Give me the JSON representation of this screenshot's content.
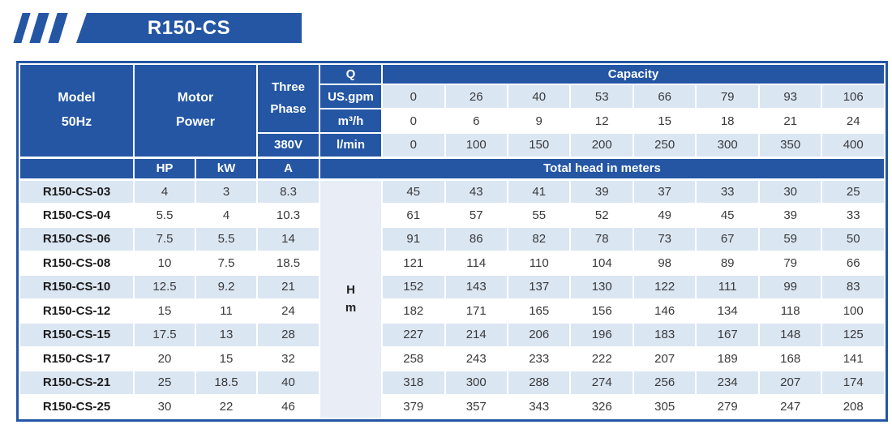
{
  "badge": {
    "title": "R150-CS"
  },
  "colors": {
    "header_blue": "#2456a4",
    "row_stripe": "#dbe6f3",
    "head_unit_bg": "#e8edf6",
    "body_text": "#3a3a3a"
  },
  "table": {
    "header": {
      "model_lines": [
        "Model",
        "50Hz"
      ],
      "motor_lines": [
        "Motor",
        "Power"
      ],
      "phase_lines": [
        "Three",
        "Phase"
      ],
      "voltage": "380V",
      "q_label": "Q",
      "capacity_label": "Capacity",
      "hp_label": "HP",
      "kw_label": "kW",
      "a_label": "A",
      "total_head_label": "Total head in meters",
      "flow_rows": [
        {
          "unit": "US.gpm",
          "values": [
            "0",
            "26",
            "40",
            "53",
            "66",
            "79",
            "93",
            "106"
          ]
        },
        {
          "unit": "m³/h",
          "values": [
            "0",
            "6",
            "9",
            "12",
            "15",
            "18",
            "21",
            "24"
          ]
        },
        {
          "unit": "l/min",
          "values": [
            "0",
            "100",
            "150",
            "200",
            "250",
            "300",
            "350",
            "400"
          ]
        }
      ]
    },
    "head_unit": {
      "line1": "H",
      "line2": "m"
    },
    "rows": [
      {
        "model": "R150-CS-03",
        "hp": "4",
        "kw": "3",
        "a": "8.3",
        "heads": [
          "45",
          "43",
          "41",
          "39",
          "37",
          "33",
          "30",
          "25"
        ]
      },
      {
        "model": "R150-CS-04",
        "hp": "5.5",
        "kw": "4",
        "a": "10.3",
        "heads": [
          "61",
          "57",
          "55",
          "52",
          "49",
          "45",
          "39",
          "33"
        ]
      },
      {
        "model": "R150-CS-06",
        "hp": "7.5",
        "kw": "5.5",
        "a": "14",
        "heads": [
          "91",
          "86",
          "82",
          "78",
          "73",
          "67",
          "59",
          "50"
        ]
      },
      {
        "model": "R150-CS-08",
        "hp": "10",
        "kw": "7.5",
        "a": "18.5",
        "heads": [
          "121",
          "114",
          "110",
          "104",
          "98",
          "89",
          "79",
          "66"
        ]
      },
      {
        "model": "R150-CS-10",
        "hp": "12.5",
        "kw": "9.2",
        "a": "21",
        "heads": [
          "152",
          "143",
          "137",
          "130",
          "122",
          "111",
          "99",
          "83"
        ]
      },
      {
        "model": "R150-CS-12",
        "hp": "15",
        "kw": "11",
        "a": "24",
        "heads": [
          "182",
          "171",
          "165",
          "156",
          "146",
          "134",
          "118",
          "100"
        ]
      },
      {
        "model": "R150-CS-15",
        "hp": "17.5",
        "kw": "13",
        "a": "28",
        "heads": [
          "227",
          "214",
          "206",
          "196",
          "183",
          "167",
          "148",
          "125"
        ]
      },
      {
        "model": "R150-CS-17",
        "hp": "20",
        "kw": "15",
        "a": "32",
        "heads": [
          "258",
          "243",
          "233",
          "222",
          "207",
          "189",
          "168",
          "141"
        ]
      },
      {
        "model": "R150-CS-21",
        "hp": "25",
        "kw": "18.5",
        "a": "40",
        "heads": [
          "318",
          "300",
          "288",
          "274",
          "256",
          "234",
          "207",
          "174"
        ]
      },
      {
        "model": "R150-CS-25",
        "hp": "30",
        "kw": "22",
        "a": "46",
        "heads": [
          "379",
          "357",
          "343",
          "326",
          "305",
          "279",
          "247",
          "208"
        ]
      }
    ]
  }
}
